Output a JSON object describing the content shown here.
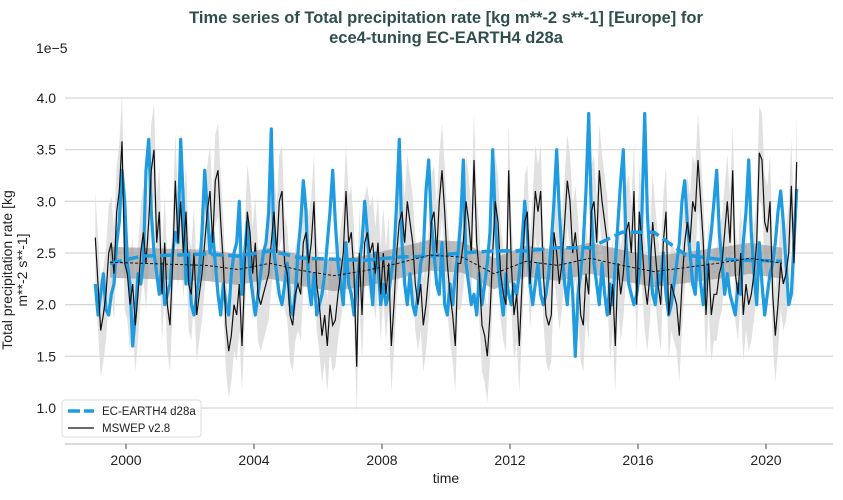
{
  "chart_data": {
    "type": "line",
    "title": "Time series of Total precipitation rate [kg m**-2 s**-1] [Europe] for",
    "title_line2": "ece4-tuning EC-EARTH4 d28a",
    "xlabel": "time",
    "ylabel": "Total precipitation rate [kg",
    "ylabel_line2": "m**-2 s**-1]",
    "y_multiplier": "1e−5",
    "xlim": [
      1998.0,
      2021.7
    ],
    "ylim": [
      0.7,
      4.35
    ],
    "xticks": [
      "2000",
      "2004",
      "2008",
      "2012",
      "2016",
      "2020"
    ],
    "yticks": [
      "1.0",
      "1.5",
      "2.0",
      "2.5",
      "3.0",
      "3.5",
      "4.0"
    ],
    "grid": "horizontal",
    "legend_placement": "bottom-left",
    "x_start": "1999-01",
    "x_frequency": "monthly",
    "colors": {
      "model": "#1f9be0",
      "obs": "#111111",
      "band": "#d9d9d9",
      "mean_band": "#9e9e9e",
      "title": "#2f4f4f"
    },
    "series": [
      {
        "name": "EC-EARTH4 d28a",
        "style": "dashed mean, solid monthly",
        "monthly": [
          2.2,
          1.9,
          2.1,
          2.3,
          1.95,
          1.9,
          2.1,
          2.2,
          2.6,
          2.8,
          3.3,
          3.0,
          2.4,
          2.2,
          1.6,
          1.9,
          2.3,
          2.2,
          2.4,
          3.3,
          3.6,
          2.9,
          2.5,
          2.3,
          2.1,
          2.4,
          2.0,
          2.1,
          2.2,
          2.5,
          2.7,
          2.6,
          3.6,
          3.0,
          2.2,
          2.5,
          2.0,
          1.9,
          2.1,
          2.3,
          2.7,
          3.3,
          2.9,
          2.5,
          2.7,
          2.4,
          2.1,
          1.9,
          2.2,
          2.0,
          1.9,
          2.3,
          2.5,
          2.6,
          3.0,
          2.1,
          2.5,
          2.8,
          2.3,
          2.1,
          1.9,
          2.1,
          2.3,
          2.5,
          2.6,
          2.9,
          3.7,
          2.5,
          2.3,
          2.1,
          2.0,
          2.2,
          2.4,
          2.0,
          1.9,
          2.1,
          2.5,
          2.8,
          3.2,
          2.9,
          2.2,
          2.0,
          2.3,
          1.9,
          2.0,
          2.1,
          2.3,
          2.6,
          2.9,
          3.3,
          2.8,
          2.4,
          2.2,
          2.0,
          2.6,
          2.2,
          2.1,
          1.9,
          2.2,
          2.4,
          2.6,
          3.0,
          2.7,
          2.3,
          2.0,
          2.5,
          2.4,
          2.0,
          2.2,
          2.0,
          2.1,
          2.3,
          2.5,
          3.0,
          3.6,
          2.6,
          2.2,
          2.0,
          2.3,
          2.0,
          1.9,
          2.1,
          2.4,
          2.5,
          3.1,
          3.4,
          2.8,
          2.5,
          2.2,
          2.1,
          2.6,
          2.0,
          1.9,
          2.2,
          2.0,
          2.3,
          2.5,
          2.8,
          3.4,
          2.4,
          2.2,
          2.0,
          2.1,
          1.9,
          2.3,
          2.0,
          2.2,
          2.4,
          2.7,
          3.5,
          2.8,
          2.4,
          2.1,
          1.9,
          2.3,
          2.1,
          2.0,
          2.2,
          2.1,
          2.3,
          2.6,
          3.0,
          2.7,
          2.2,
          2.0,
          2.2,
          2.4,
          2.1,
          2.0,
          2.1,
          2.3,
          2.6,
          3.0,
          3.5,
          2.9,
          2.5,
          2.2,
          2.0,
          2.4,
          2.1,
          1.5,
          2.1,
          2.3,
          2.6,
          3.1,
          3.85,
          2.9,
          2.4,
          2.2,
          2.0,
          2.4,
          2.1,
          1.9,
          2.2,
          2.0,
          2.4,
          2.8,
          3.2,
          3.5,
          2.6,
          2.2,
          2.1,
          2.0,
          2.1,
          2.3,
          2.9,
          3.85,
          2.9,
          2.4,
          2.1,
          2.0,
          2.3,
          2.2,
          2.5,
          2.1,
          1.9,
          2.0,
          2.2,
          2.4,
          2.6,
          3.0,
          3.2,
          2.8,
          2.5,
          2.2,
          2.1,
          2.6,
          2.2,
          2.0,
          2.3,
          2.5,
          2.7,
          3.0,
          3.3,
          2.7,
          2.4,
          2.1,
          2.3,
          2.1,
          2.0,
          1.9,
          2.2,
          2.1,
          2.6,
          2.9,
          3.4,
          2.7,
          2.3,
          2.0,
          2.6,
          2.2,
          1.9,
          2.1,
          2.3,
          2.4,
          2.6,
          2.9,
          3.1,
          2.8,
          2.4,
          2.0,
          2.1,
          2.6,
          3.12
        ],
        "annual_mean": [
          2.4,
          2.47,
          2.48,
          2.49,
          2.47,
          2.52,
          2.45,
          2.44,
          2.43,
          2.46,
          2.47,
          2.5,
          2.52,
          2.52,
          2.55,
          2.55,
          2.7,
          2.7,
          2.48,
          2.44,
          2.43,
          2.42
        ]
      },
      {
        "name": "MSWEP v2.8",
        "style": "dashed mean, solid monthly",
        "monthly": [
          2.65,
          2.2,
          1.75,
          1.9,
          2.1,
          2.5,
          2.6,
          2.3,
          2.9,
          3.1,
          3.58,
          2.4,
          2.3,
          2.0,
          2.2,
          1.8,
          2.1,
          2.5,
          2.7,
          2.4,
          2.8,
          3.3,
          3.5,
          2.6,
          2.9,
          2.1,
          2.6,
          2.0,
          1.8,
          2.4,
          3.2,
          2.6,
          3.0,
          2.5,
          2.9,
          2.2,
          2.1,
          2.5,
          1.9,
          2.1,
          2.3,
          2.6,
          2.9,
          3.1,
          2.6,
          3.2,
          3.3,
          2.8,
          2.4,
          1.8,
          1.55,
          1.7,
          2.0,
          1.9,
          2.2,
          1.6,
          2.3,
          2.9,
          2.7,
          2.3,
          2.6,
          2.1,
          2.0,
          2.1,
          2.2,
          2.3,
          2.6,
          2.9,
          2.5,
          3.0,
          3.1,
          2.4,
          2.3,
          1.9,
          1.8,
          2.1,
          2.2,
          2.1,
          2.6,
          2.7,
          2.4,
          2.6,
          3.0,
          2.2,
          2.0,
          1.7,
          1.9,
          1.6,
          2.0,
          1.8,
          1.85,
          2.1,
          2.3,
          2.5,
          3.1,
          2.6,
          2.7,
          2.3,
          1.4,
          2.5,
          1.9,
          2.6,
          2.7,
          2.5,
          2.6,
          2.3,
          2.6,
          2.1,
          2.5,
          2.1,
          2.4,
          1.6,
          2.0,
          2.5,
          2.8,
          2.9,
          2.6,
          3.0,
          2.8,
          2.6,
          2.2,
          2.0,
          2.2,
          1.8,
          2.0,
          2.3,
          2.8,
          2.9,
          2.5,
          3.0,
          3.3,
          2.9,
          2.4,
          2.1,
          1.9,
          1.6,
          2.4,
          2.4,
          2.6,
          3.0,
          2.8,
          2.5,
          3.4,
          2.6,
          2.3,
          1.8,
          1.7,
          1.5,
          1.9,
          2.5,
          3.0,
          2.8,
          2.3,
          2.1,
          2.0,
          3.3,
          2.4,
          1.9,
          2.1,
          1.6,
          2.2,
          2.8,
          2.9,
          2.2,
          2.6,
          3.1,
          2.9,
          3.1,
          2.3,
          1.9,
          1.8,
          1.9,
          2.7,
          2.5,
          2.2,
          2.4,
          2.8,
          3.2,
          3.0,
          2.5,
          2.7,
          2.4,
          1.9,
          1.8,
          2.3,
          2.1,
          2.9,
          3.0,
          2.6,
          3.3,
          3.0,
          2.8,
          2.6,
          1.9,
          2.2,
          1.6,
          2.4,
          2.1,
          2.3,
          2.7,
          2.8,
          2.5,
          3.1,
          2.0,
          2.9,
          2.6,
          2.2,
          2.0,
          2.3,
          2.8,
          2.5,
          2.2,
          2.0,
          2.6,
          2.9,
          1.9,
          2.2,
          2.1,
          2.0,
          1.7,
          2.2,
          2.6,
          2.8,
          2.6,
          3.0,
          2.9,
          3.4,
          3.0,
          2.6,
          1.9,
          2.4,
          1.9,
          2.1,
          2.1,
          2.3,
          2.4,
          2.7,
          3.0,
          2.6,
          3.3,
          2.3,
          2.1,
          2.5,
          1.9,
          2.2,
          2.0,
          2.1,
          2.3,
          2.6,
          3.47,
          3.4,
          2.8,
          2.7,
          3.0,
          2.1,
          1.7,
          2.0,
          2.4,
          2.2,
          2.3,
          2.5,
          3.15,
          2.4,
          3.38
        ],
        "annual_mean": [
          2.41,
          2.4,
          2.39,
          2.38,
          2.34,
          2.4,
          2.33,
          2.28,
          2.33,
          2.4,
          2.48,
          2.46,
          2.3,
          2.42,
          2.38,
          2.45,
          2.38,
          2.32,
          2.36,
          2.4,
          2.45,
          2.4
        ],
        "monthly_spread": 0.45,
        "mean_spread": 0.15
      }
    ]
  }
}
